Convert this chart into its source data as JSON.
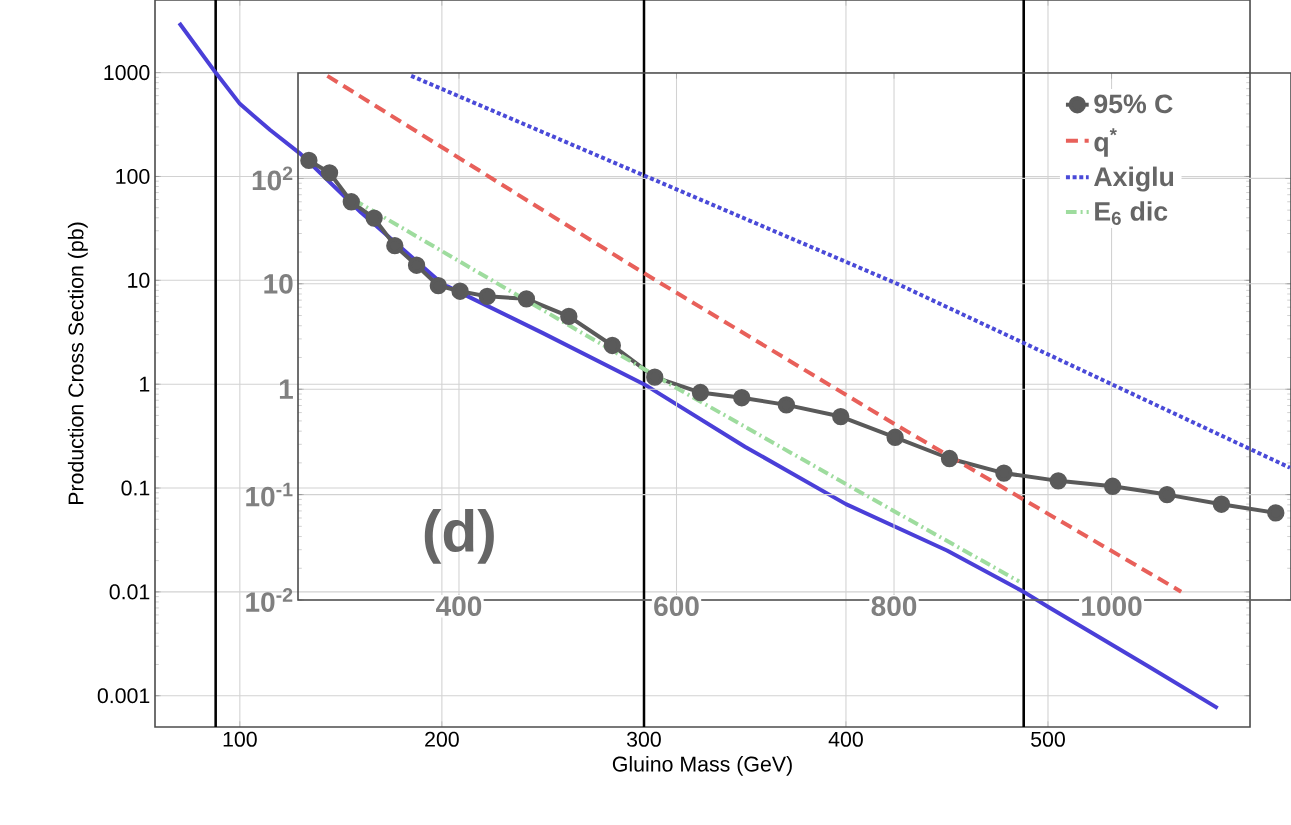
{
  "chart_data": [
    {
      "type": "line",
      "xlabel": "Gluino Mass (GeV)",
      "ylabel": "Production Cross Section (pb)",
      "log": "y",
      "grid": true,
      "legend": false,
      "marker": "none",
      "xlim": [
        58,
        600
      ],
      "ylim": [
        0.0005,
        5000
      ],
      "xticks": [
        100,
        200,
        300,
        400,
        500
      ],
      "yticks": [
        0.001,
        0.01,
        0.1,
        1,
        10,
        100,
        1000
      ],
      "ref_lines": [
        {
          "axis": "x",
          "value": 88,
          "color": "#000000"
        },
        {
          "axis": "x",
          "value": 300,
          "color": "#000000"
        },
        {
          "axis": "x",
          "value": 488,
          "color": "#000000"
        }
      ],
      "series": [
        {
          "color": "#4a3fd8",
          "line_style": "solid",
          "x": [
            70,
            88,
            100,
            115,
            130,
            160,
            200,
            250,
            300,
            350,
            400,
            450,
            488,
            500,
            550,
            584
          ],
          "values": [
            3000,
            1000,
            500,
            280,
            165,
            45,
            9.3,
            3.1,
            1,
            0.25,
            0.07,
            0.025,
            0.01,
            0.0072,
            0.0019,
            0.00076
          ]
        }
      ]
    },
    {
      "type": "line",
      "log": "y",
      "grid": true,
      "legend": "top right",
      "annotations": [
        "(d)"
      ],
      "xlim": [
        252,
        1165
      ],
      "ylim": [
        0.01,
        1000
      ],
      "xticks": [
        400,
        600,
        800,
        1000
      ],
      "yticks": [
        {
          "value": 0.01,
          "label": "10$^{-2}$"
        },
        {
          "value": 0.1,
          "label": "10$^{-1}$"
        },
        1,
        10,
        {
          "value": 100,
          "label": "10$^{2}$"
        }
      ],
      "series": [
        {
          "name": "95% C",
          "color": "#5a5a5a",
          "marker": "circle",
          "line_style": "solid",
          "x": [
            262,
            281,
            301,
            322,
            341,
            361,
            381,
            401,
            426,
            462,
            501,
            541,
            580,
            622,
            660,
            701,
            751,
            801,
            851,
            901,
            951,
            1001,
            1051,
            1101,
            1151
          ],
          "values": [
            148,
            113,
            60,
            42,
            23,
            15,
            9.6,
            8.5,
            7.6,
            7.2,
            4.9,
            2.6,
            1.3,
            0.93,
            0.83,
            0.71,
            0.55,
            0.35,
            0.22,
            0.16,
            0.135,
            0.12,
            0.1,
            0.081,
            0.067
          ]
        },
        {
          "name": "q$^{*}$",
          "color": "#e8605a",
          "marker": "none",
          "line_style": "dashed",
          "x": [
            279,
            568,
            800,
            1064
          ],
          "values": [
            940,
            13,
            0.47,
            0.012
          ]
        },
        {
          "name": "Axiglu",
          "color": "#4a4ad8",
          "marker": "none",
          "line_style": "dotted",
          "x": [
            356,
            803,
            1164
          ],
          "values": [
            940,
            10,
            0.18
          ]
        },
        {
          "name": "E$_{6}$ dic",
          "color": "#9edc9e",
          "marker": "none",
          "line_style": "dashdot",
          "x": [
            303,
            597,
            773,
            915
          ],
          "values": [
            63,
            1.07,
            0.1,
            0.015
          ]
        }
      ]
    }
  ]
}
